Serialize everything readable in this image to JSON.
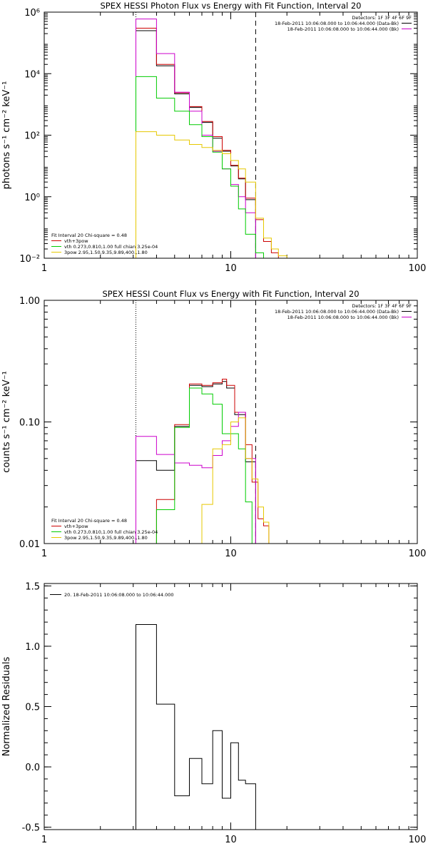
{
  "chart_data": [
    {
      "type": "line",
      "title": "SPEX HESSI Photon Flux vs Energy with Fit Function, Interval 20",
      "xlabel": "",
      "ylabel": "photons s⁻¹ cm⁻² keV⁻¹",
      "xscale": "log",
      "yscale": "log",
      "xlim": [
        1,
        100
      ],
      "ylim": [
        0.01,
        1000000
      ],
      "x_ticks": [
        {
          "v": 1,
          "label": "1"
        },
        {
          "v": 10,
          "label": "10"
        },
        {
          "v": 100,
          "label": "100"
        }
      ],
      "y_ticks": [
        {
          "v": 0.01,
          "label": "10⁻²"
        },
        {
          "v": 1,
          "label": "10⁰"
        },
        {
          "v": 100,
          "label": "10²"
        },
        {
          "v": 10000,
          "label": "10⁴"
        },
        {
          "v": 1000000,
          "label": "10⁶"
        }
      ],
      "vlines": [
        {
          "x": 3.1,
          "style": "dotted",
          "color": "#000000"
        },
        {
          "x": 13.6,
          "style": "dashed",
          "color": "#000000"
        }
      ],
      "legend_top": {
        "placement": "top-right",
        "header": "Detectors: 1F 3F 4F 6F 9F",
        "entries": [
          {
            "text": "18-Feb-2011 10:06:08.000 to 10:06:44.000 (Data-Bk)",
            "color": "#000000"
          },
          {
            "text": "18-Feb-2011 10:06:08.000 to 10:06:44.000 (Bk)",
            "color": "#cc00cc"
          }
        ]
      },
      "legend_bottom": {
        "placement": "bottom-left",
        "header": "Fit Interval 20   Chi-square = 0.48",
        "entries": [
          {
            "text": "vth+3pow",
            "color": "#cc0000"
          },
          {
            "text": "vth 0.273,0.810,1.00  full chian 3.25e-04",
            "color": "#00cc00"
          },
          {
            "text": "3pow 2.95,1.50,9.35,9.89,400.,1.80",
            "color": "#e6c800"
          }
        ]
      },
      "bin_edges": [
        3.1,
        4.0,
        5.0,
        6.0,
        7.0,
        8.0,
        9.0,
        10.0,
        11.0,
        12.0,
        13.6,
        15.0,
        16.5,
        18.0,
        20.0,
        22.0
      ],
      "series": [
        {
          "color": "#000000",
          "values": [
            250000,
            18000,
            2200,
            800,
            260,
            80,
            30,
            10,
            3.8,
            0.8
          ]
        },
        {
          "color": "#cc0000",
          "values": [
            300000,
            20000,
            2400,
            850,
            280,
            90,
            32,
            10.5,
            4.0,
            0.9,
            0.18,
            0.035,
            0.015
          ]
        },
        {
          "color": "#cc00cc",
          "values": [
            600000,
            45000,
            2500,
            600,
            100,
            30,
            8,
            2.5,
            1.0,
            0.3
          ]
        },
        {
          "color": "#00cc00",
          "values": [
            8000,
            1600,
            600,
            220,
            90,
            28,
            8,
            2.2,
            0.4,
            0.06,
            0.015
          ]
        },
        {
          "color": "#e6c800",
          "values": [
            130,
            100,
            70,
            50,
            40,
            32,
            25,
            15,
            8,
            3,
            0.2,
            0.045,
            0.02,
            0.012
          ]
        }
      ]
    },
    {
      "type": "line",
      "title": "SPEX HESSI Count Flux vs Energy with Fit Function, Interval 20",
      "xlabel": "",
      "ylabel": "counts s⁻¹ cm⁻² keV⁻¹",
      "xscale": "log",
      "yscale": "log",
      "xlim": [
        1,
        100
      ],
      "ylim": [
        0.01,
        1.0
      ],
      "x_ticks": [
        {
          "v": 1,
          "label": "1"
        },
        {
          "v": 10,
          "label": "10"
        },
        {
          "v": 100,
          "label": "100"
        }
      ],
      "y_ticks": [
        {
          "v": 0.01,
          "label": "0.01"
        },
        {
          "v": 0.1,
          "label": "0.10"
        },
        {
          "v": 1.0,
          "label": "1.00"
        }
      ],
      "vlines": [
        {
          "x": 3.1,
          "style": "dotted",
          "color": "#000000"
        },
        {
          "x": 13.6,
          "style": "dashed",
          "color": "#000000"
        }
      ],
      "legend_top": {
        "placement": "top-right",
        "header": "Detectors: 1F 3F 4F 6F 9F",
        "entries": [
          {
            "text": "18-Feb-2011 10:06:08.000 to 10:06:44.000 (Data-Bk)",
            "color": "#000000"
          },
          {
            "text": "18-Feb-2011 10:06:08.000 to 10:06:44.000 (Bk)",
            "color": "#cc00cc"
          }
        ]
      },
      "legend_bottom": {
        "placement": "bottom-left",
        "header": "Fit Interval 20   Chi-square = 0.48",
        "entries": [
          {
            "text": "vth+3pow",
            "color": "#cc0000"
          },
          {
            "text": "vth 0.273,0.810,1.00  full chian 3.25e-04",
            "color": "#00cc00"
          },
          {
            "text": "3pow 2.95,1.50,9.35,9.89,400.,1.80",
            "color": "#e6c800"
          }
        ]
      },
      "series": [
        {
          "color": "#000000",
          "edges": [
            3.1,
            4.0,
            5.0,
            6.0,
            7.0,
            8.0,
            9.0,
            9.5,
            10.5,
            12.0,
            13.6
          ],
          "values": [
            0.048,
            0.04,
            0.092,
            0.2,
            0.195,
            0.205,
            0.215,
            0.19,
            0.115,
            0.047
          ]
        },
        {
          "color": "#cc0000",
          "edges": [
            4.0,
            5.0,
            6.0,
            7.0,
            8.0,
            9.0,
            9.5,
            10.5,
            12.0,
            13.0,
            14.0,
            15.0,
            16.0
          ],
          "values": [
            0.023,
            0.095,
            0.205,
            0.2,
            0.21,
            0.225,
            0.2,
            0.12,
            0.065,
            0.032,
            0.016,
            0.014
          ]
        },
        {
          "color": "#cc00cc",
          "edges": [
            3.1,
            4.0,
            5.0,
            6.0,
            7.0,
            8.0,
            9.0,
            10.0,
            11.0,
            12.0,
            13.6
          ],
          "values": [
            0.076,
            0.054,
            0.046,
            0.044,
            0.042,
            0.053,
            0.07,
            0.092,
            0.12,
            0.05
          ]
        },
        {
          "color": "#00cc00",
          "edges": [
            4.0,
            5.0,
            6.0,
            7.0,
            8.0,
            9.0,
            10.0,
            11.0,
            12.0,
            13.0,
            13.6
          ],
          "values": [
            0.019,
            0.09,
            0.19,
            0.17,
            0.14,
            0.08,
            0.08,
            0.06,
            0.022,
            0.01
          ]
        },
        {
          "color": "#e6c800",
          "edges": [
            7.0,
            8.0,
            9.0,
            10.0,
            11.0,
            12.0,
            13.0,
            14.0,
            15.0,
            16.0
          ],
          "values": [
            0.021,
            0.06,
            0.065,
            0.1,
            0.108,
            0.05,
            0.034,
            0.02,
            0.015
          ]
        }
      ]
    },
    {
      "type": "line",
      "title": "",
      "xlabel": "",
      "ylabel": "Normalized Residuals",
      "xscale": "log",
      "yscale": "linear",
      "xlim": [
        1,
        100
      ],
      "ylim": [
        -0.52,
        1.52
      ],
      "x_ticks": [
        {
          "v": 1,
          "label": "1"
        },
        {
          "v": 10,
          "label": "10"
        },
        {
          "v": 100,
          "label": "100"
        }
      ],
      "y_ticks": [
        {
          "v": -0.5,
          "label": "-0.5"
        },
        {
          "v": 0.0,
          "label": "0.0"
        },
        {
          "v": 0.5,
          "label": "0.5"
        },
        {
          "v": 1.0,
          "label": "1.0"
        },
        {
          "v": 1.5,
          "label": "1.5"
        }
      ],
      "legend_top": {
        "placement": "top-left",
        "header": "",
        "entries": [
          {
            "text": "20. 18-Feb-2011 10:06:08.000 to 10:06:44.000",
            "color": "#000000"
          }
        ]
      },
      "series": [
        {
          "color": "#000000",
          "edges": [
            3.1,
            4.0,
            5.0,
            6.0,
            7.0,
            8.0,
            9.0,
            10.0,
            11.0,
            12.0,
            13.6
          ],
          "values": [
            1.18,
            0.52,
            -0.24,
            0.07,
            -0.14,
            0.3,
            -0.26,
            0.2,
            -0.11,
            -0.14
          ],
          "drop_to": -0.52
        }
      ]
    }
  ]
}
